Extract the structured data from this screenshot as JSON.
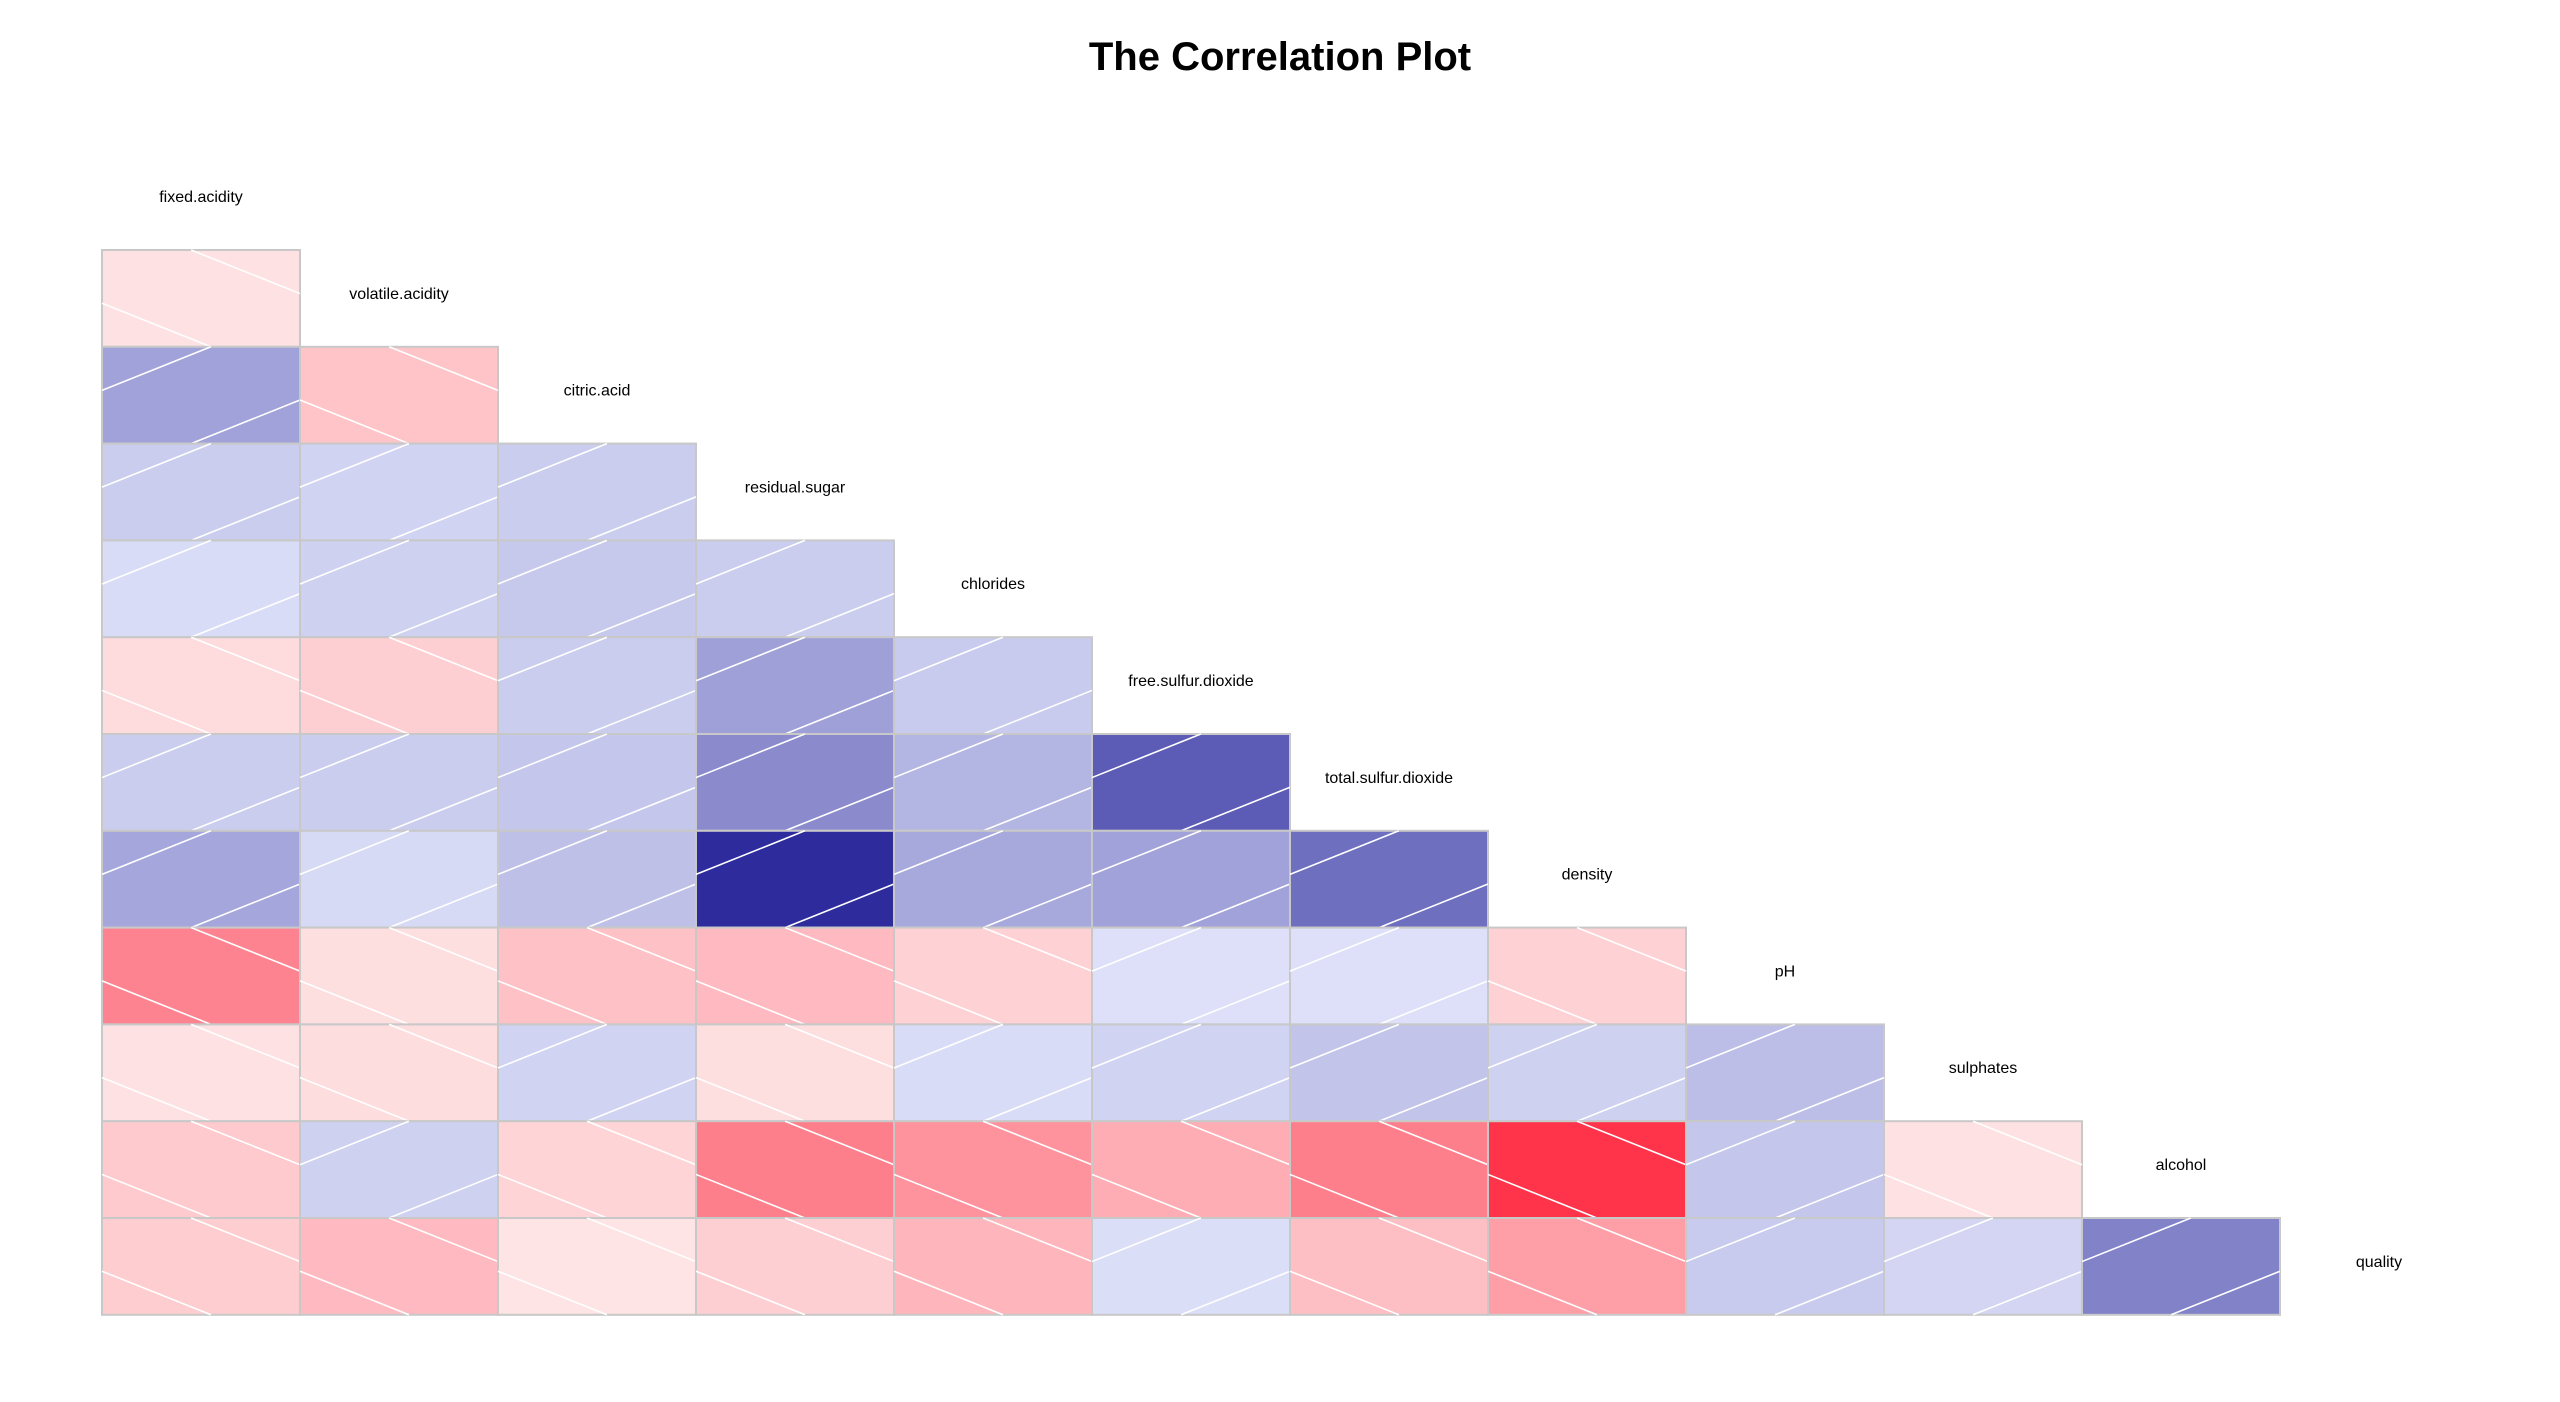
{
  "chart_data": {
    "type": "heatmap",
    "title": "The Correlation Plot",
    "variables": [
      "fixed.acidity",
      "volatile.acidity",
      "citric.acid",
      "residual.sugar",
      "chlorides",
      "free.sulfur.dioxide",
      "total.sulfur.dioxide",
      "density",
      "pH",
      "sulphates",
      "alcohol",
      "quality"
    ],
    "layout": "lower-triangle",
    "rows": [
      {
        "variable": "volatile.acidity",
        "values": [
          -0.02
        ]
      },
      {
        "variable": "citric.acid",
        "values": [
          0.29,
          -0.15
        ]
      },
      {
        "variable": "residual.sugar",
        "values": [
          0.09,
          0.06,
          0.09
        ]
      },
      {
        "variable": "chlorides",
        "values": [
          0.02,
          0.07,
          0.11,
          0.09
        ]
      },
      {
        "variable": "free.sulfur.dioxide",
        "values": [
          -0.05,
          -0.1,
          0.09,
          0.3,
          0.1
        ]
      },
      {
        "variable": "total.sulfur.dioxide",
        "values": [
          0.09,
          0.09,
          0.12,
          0.4,
          0.2,
          0.62
        ]
      },
      {
        "variable": "density",
        "values": [
          0.27,
          0.03,
          0.15,
          0.84,
          0.26,
          0.29,
          0.53
        ]
      },
      {
        "variable": "pH",
        "values": [
          -0.43,
          -0.03,
          -0.16,
          -0.19,
          -0.09,
          -0.0,
          0.0,
          -0.09
        ]
      },
      {
        "variable": "sulphates",
        "values": [
          -0.02,
          -0.04,
          0.06,
          -0.03,
          0.02,
          0.06,
          0.13,
          0.07,
          0.16
        ]
      },
      {
        "variable": "alcohol",
        "values": [
          -0.12,
          0.07,
          -0.08,
          -0.45,
          -0.36,
          -0.25,
          -0.45,
          -0.78,
          0.12,
          -0.02
        ]
      },
      {
        "variable": "quality",
        "values": [
          -0.11,
          -0.19,
          -0.01,
          -0.1,
          -0.21,
          0.01,
          -0.17,
          -0.31,
          0.1,
          0.05,
          0.44
        ]
      }
    ],
    "palette": {
      "positive": "#0d0a8c",
      "negative": "#ff001e",
      "neutral": "#ffffff"
    },
    "cell_border_color": "#c8c8c8",
    "stripe_color": "#ffffff",
    "legend": "none",
    "grid": false
  }
}
